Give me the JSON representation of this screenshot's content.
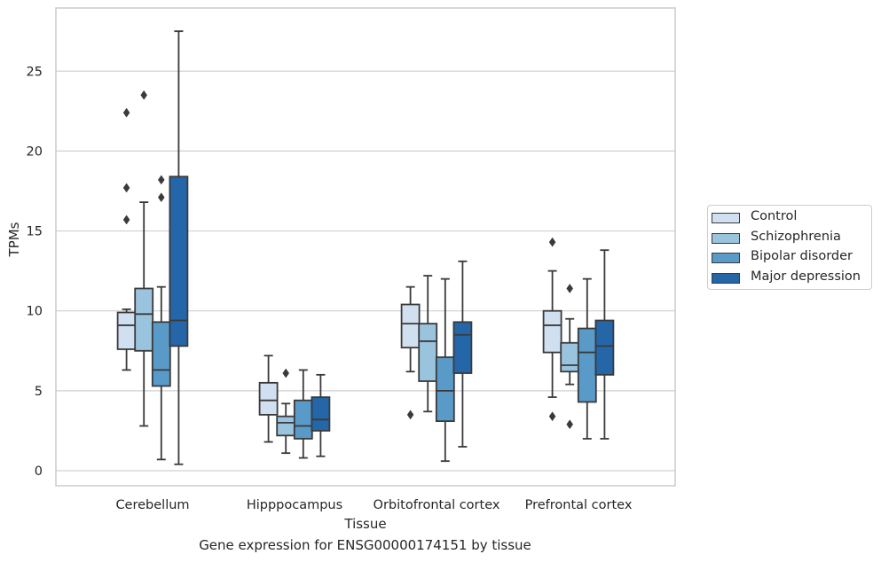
{
  "chart_data": {
    "type": "boxplot",
    "xlabel": "Tissue",
    "ylabel": "TPMs",
    "caption": "Gene expression for ENSG00000174151 by tissue",
    "ylim": [
      -0.8,
      28.8
    ],
    "yticks": [
      0,
      5,
      10,
      15,
      20,
      25
    ],
    "grid": "horizontal",
    "legend_position": "right",
    "categories": [
      "Cerebellum",
      "Hipppocampus",
      "Orbitofrontal cortex",
      "Prefrontal cortex"
    ],
    "series": [
      {
        "name": "Control",
        "color": "#d1e0f1",
        "boxes": [
          {
            "whislo": 6.3,
            "q1": 7.6,
            "med": 9.1,
            "q3": 9.9,
            "whishi": 10.1,
            "fliers": [
              15.7,
              17.7,
              22.4
            ]
          },
          {
            "whislo": 1.8,
            "q1": 3.5,
            "med": 4.4,
            "q3": 5.5,
            "whishi": 7.2,
            "fliers": []
          },
          {
            "whislo": 6.2,
            "q1": 7.7,
            "med": 9.2,
            "q3": 10.4,
            "whishi": 11.5,
            "fliers": [
              3.5
            ]
          },
          {
            "whislo": 4.6,
            "q1": 7.4,
            "med": 9.1,
            "q3": 10.0,
            "whishi": 12.5,
            "fliers": [
              3.4,
              14.3
            ]
          }
        ]
      },
      {
        "name": "Schizophrenia",
        "color": "#9ac4de",
        "boxes": [
          {
            "whislo": 2.8,
            "q1": 7.5,
            "med": 9.8,
            "q3": 11.4,
            "whishi": 16.8,
            "fliers": [
              23.5
            ]
          },
          {
            "whislo": 1.1,
            "q1": 2.2,
            "med": 3.0,
            "q3": 3.4,
            "whishi": 4.2,
            "fliers": [
              6.1
            ]
          },
          {
            "whislo": 3.7,
            "q1": 5.6,
            "med": 8.1,
            "q3": 9.2,
            "whishi": 12.2,
            "fliers": []
          },
          {
            "whislo": 5.4,
            "q1": 6.2,
            "med": 6.6,
            "q3": 8.0,
            "whishi": 9.5,
            "fliers": [
              2.9,
              11.4
            ]
          }
        ]
      },
      {
        "name": "Bipolar disorder",
        "color": "#5a9ac8",
        "boxes": [
          {
            "whislo": 0.7,
            "q1": 5.3,
            "med": 6.3,
            "q3": 9.3,
            "whishi": 11.5,
            "fliers": [
              17.1,
              18.2
            ]
          },
          {
            "whislo": 0.8,
            "q1": 2.0,
            "med": 2.8,
            "q3": 4.4,
            "whishi": 6.3,
            "fliers": []
          },
          {
            "whislo": 0.6,
            "q1": 3.1,
            "med": 5.0,
            "q3": 7.1,
            "whishi": 12.0,
            "fliers": []
          },
          {
            "whislo": 2.0,
            "q1": 4.3,
            "med": 7.4,
            "q3": 8.9,
            "whishi": 12.0,
            "fliers": []
          }
        ]
      },
      {
        "name": "Major depression",
        "color": "#2466a8",
        "boxes": [
          {
            "whislo": 0.4,
            "q1": 7.8,
            "med": 9.4,
            "q3": 18.4,
            "whishi": 27.5,
            "fliers": []
          },
          {
            "whislo": 0.9,
            "q1": 2.5,
            "med": 3.2,
            "q3": 4.6,
            "whishi": 6.0,
            "fliers": []
          },
          {
            "whislo": 1.5,
            "q1": 6.1,
            "med": 8.5,
            "q3": 9.3,
            "whishi": 13.1,
            "fliers": []
          },
          {
            "whislo": 2.0,
            "q1": 6.0,
            "med": 7.8,
            "q3": 9.4,
            "whishi": 13.8,
            "fliers": []
          }
        ]
      }
    ]
  }
}
